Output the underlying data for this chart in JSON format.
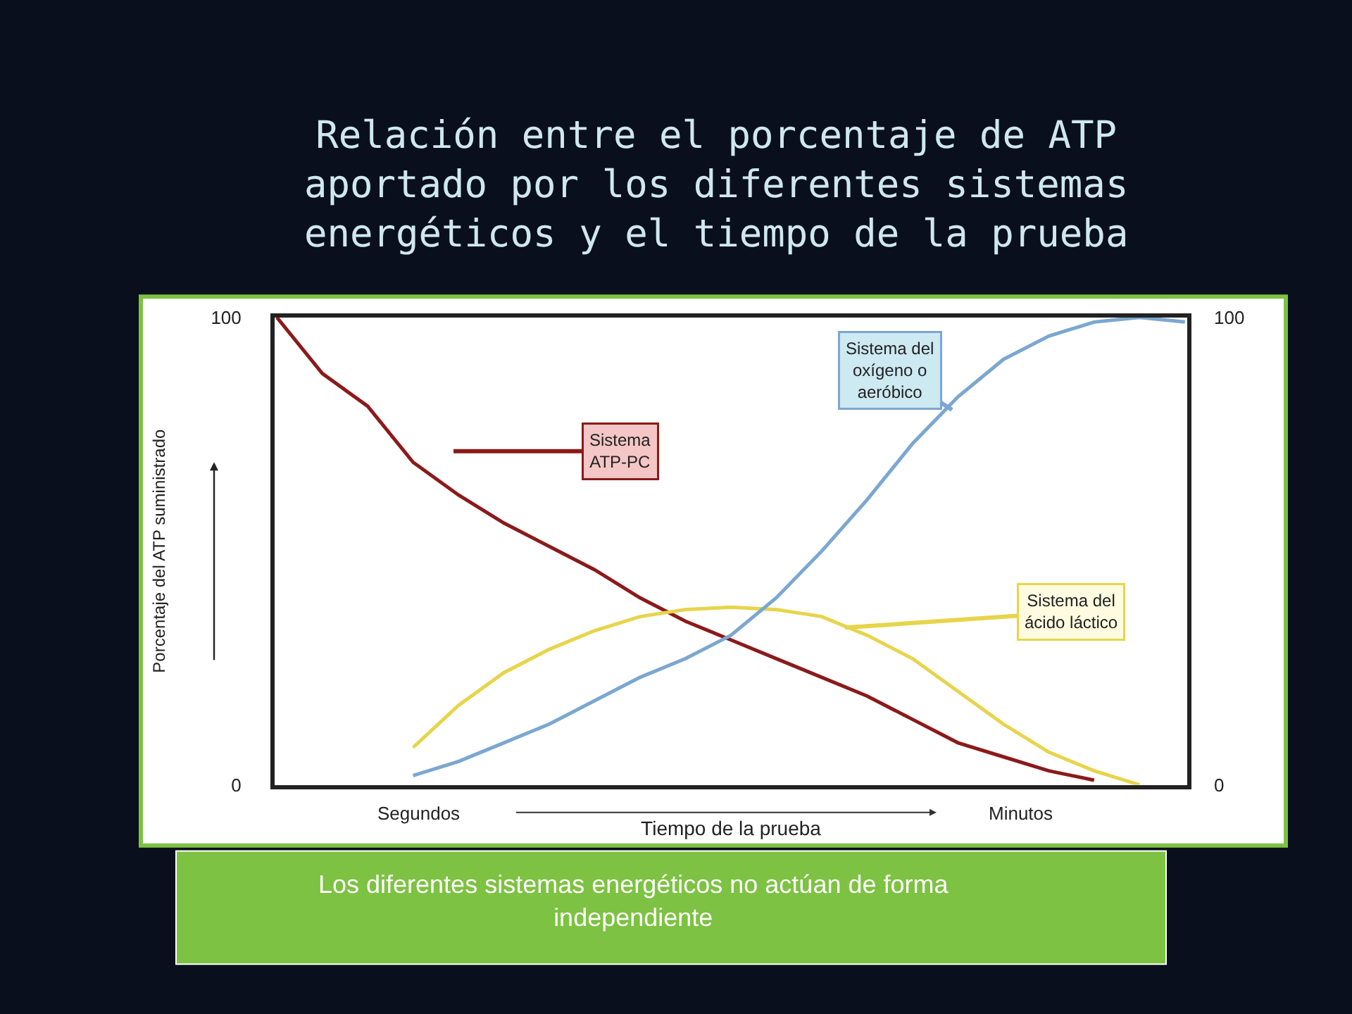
{
  "chart_data": {
    "type": "line",
    "title": "Relación entre el porcentaje de ATP\naportado por los diferentes sistemas\nenergéticos y el tiempo de la prueba",
    "xlabel": "Tiempo de la prueba",
    "ylabel": "Porcentaje del ATP suministrado",
    "categories": [
      null,
      null,
      null,
      null,
      null,
      null,
      null,
      null,
      null,
      null,
      null,
      null,
      null,
      null,
      null,
      null,
      null,
      null,
      null,
      null,
      null
    ],
    "series": [
      {
        "name": "Sistema\nATP-PC",
        "color": "#8b1a1a",
        "values": [
          100,
          88,
          81,
          69,
          62,
          56,
          51,
          46,
          40,
          35,
          31,
          27,
          23,
          19,
          14,
          9,
          6,
          3,
          1,
          null,
          null
        ]
      },
      {
        "name": "Sistema del\noxígeno o\naeróbico",
        "color": "#7ba7d0",
        "axis": "y2",
        "values": [
          null,
          null,
          null,
          2,
          5,
          9,
          13,
          18,
          23,
          27,
          32,
          40,
          50,
          61,
          73,
          83,
          91,
          96,
          99,
          100,
          99
        ]
      },
      {
        "name": "Sistema del\nácido láctico",
        "color": "#e8d44a",
        "values": [
          null,
          null,
          null,
          8,
          17,
          24,
          29,
          33,
          36,
          37.5,
          38,
          37.5,
          36,
          32,
          27,
          20,
          13,
          7,
          3,
          0,
          null
        ]
      }
    ],
    "ylim": [
      0,
      100
    ],
    "yticks": [
      0,
      100
    ],
    "y2lim": [
      0,
      100
    ],
    "y2ticks": [
      0,
      100
    ],
    "legend": false,
    "marker": "none",
    "line_style": "solid",
    "annotations": [
      "Segundos",
      "Minutos",
      "Los diferentes sistemas energéticos no actúan de forma\nindependiente"
    ]
  }
}
